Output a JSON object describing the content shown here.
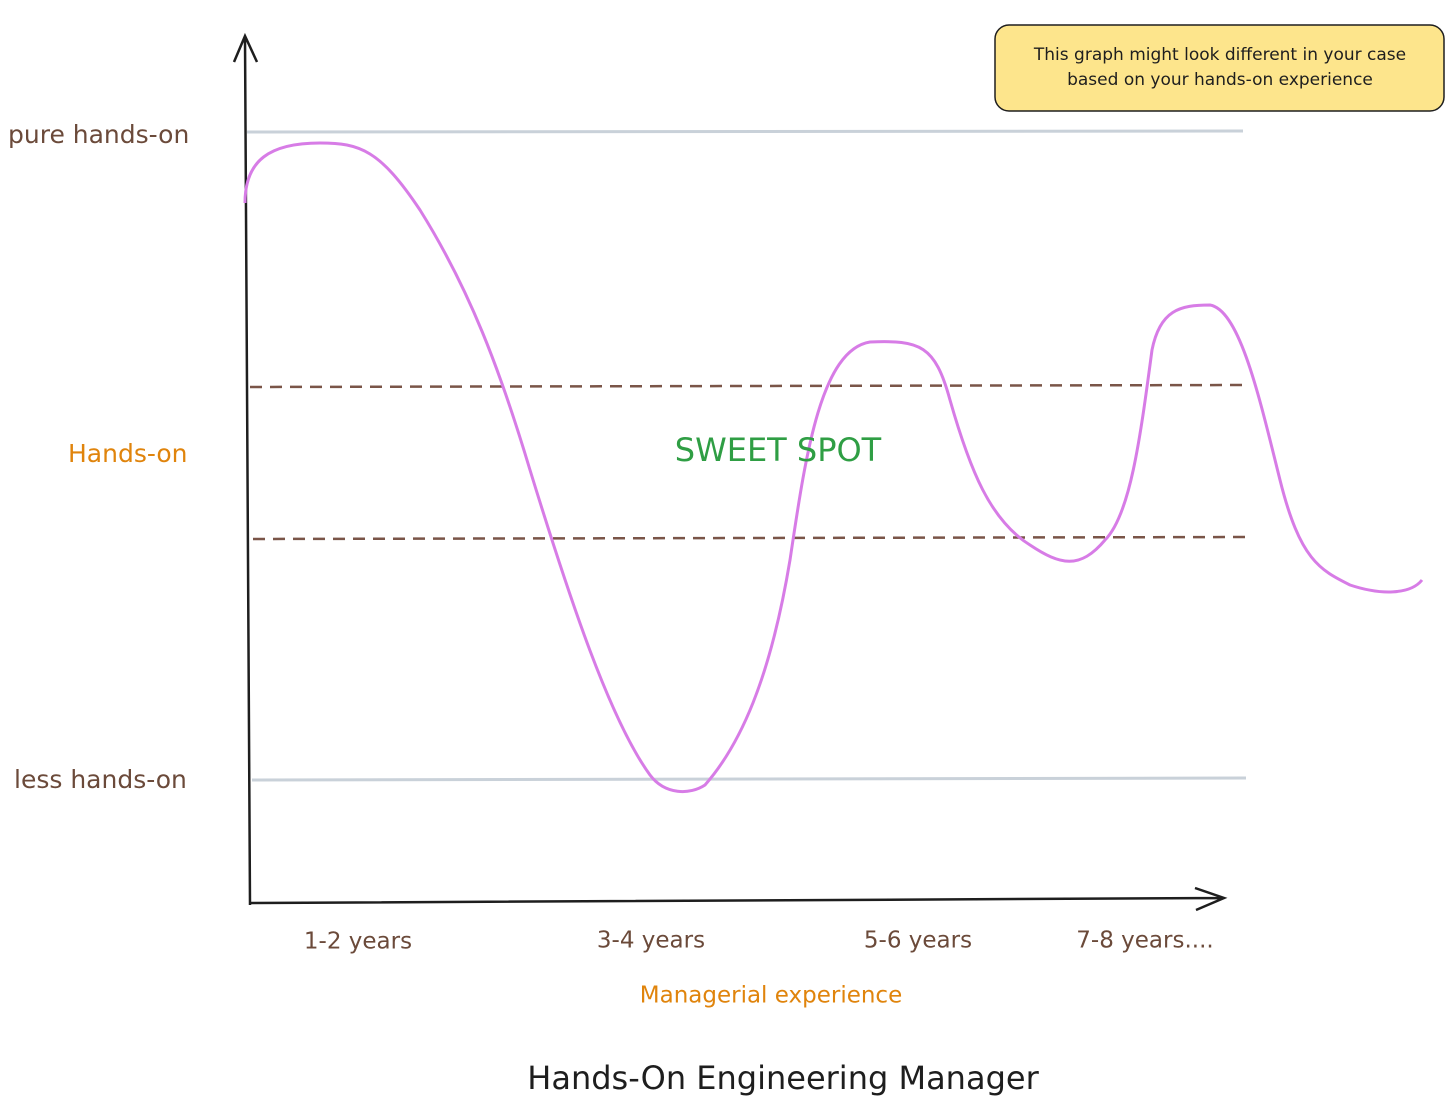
{
  "title": "Hands-On Engineering Manager",
  "note": {
    "lines": [
      "This graph might look different in your case",
      "based on your hands-on experience"
    ]
  },
  "y_labels": [
    "pure hands-on",
    "Hands-on",
    "less hands-on"
  ],
  "x_labels": [
    "1-2 years",
    "3-4 years",
    "5-6 years",
    "7-8 years...."
  ],
  "x_axis_label": "Managerial experience",
  "zone_label": "SWEET SPOT"
}
